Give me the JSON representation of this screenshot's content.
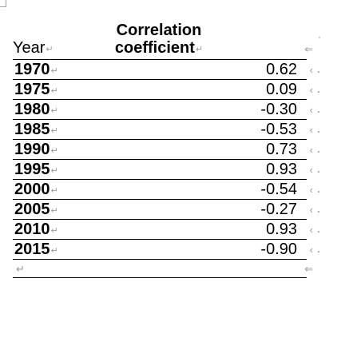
{
  "table": {
    "headers": {
      "year": "Year",
      "correlation_line1": "Correlation",
      "correlation_line2": "coefficient"
    },
    "rows": [
      {
        "year": "1970",
        "value": "0.62"
      },
      {
        "year": "1975",
        "value": "0.09"
      },
      {
        "year": "1980",
        "value": "-0.30"
      },
      {
        "year": "1985",
        "value": "-0.53"
      },
      {
        "year": "1990",
        "value": "0.73"
      },
      {
        "year": "1995",
        "value": "0.93"
      },
      {
        "year": "2000",
        "value": "-0.54"
      },
      {
        "year": "2005",
        "value": "-0.27"
      },
      {
        "year": "2010",
        "value": "0.93"
      },
      {
        "year": "2015",
        "value": "-0.90"
      }
    ],
    "marks": {
      "paragraph_mark_icon": "return-arrow-icon",
      "cell_mark_icon": "cell-end-marker-icon",
      "mark_color": "#9a9a9a"
    }
  }
}
